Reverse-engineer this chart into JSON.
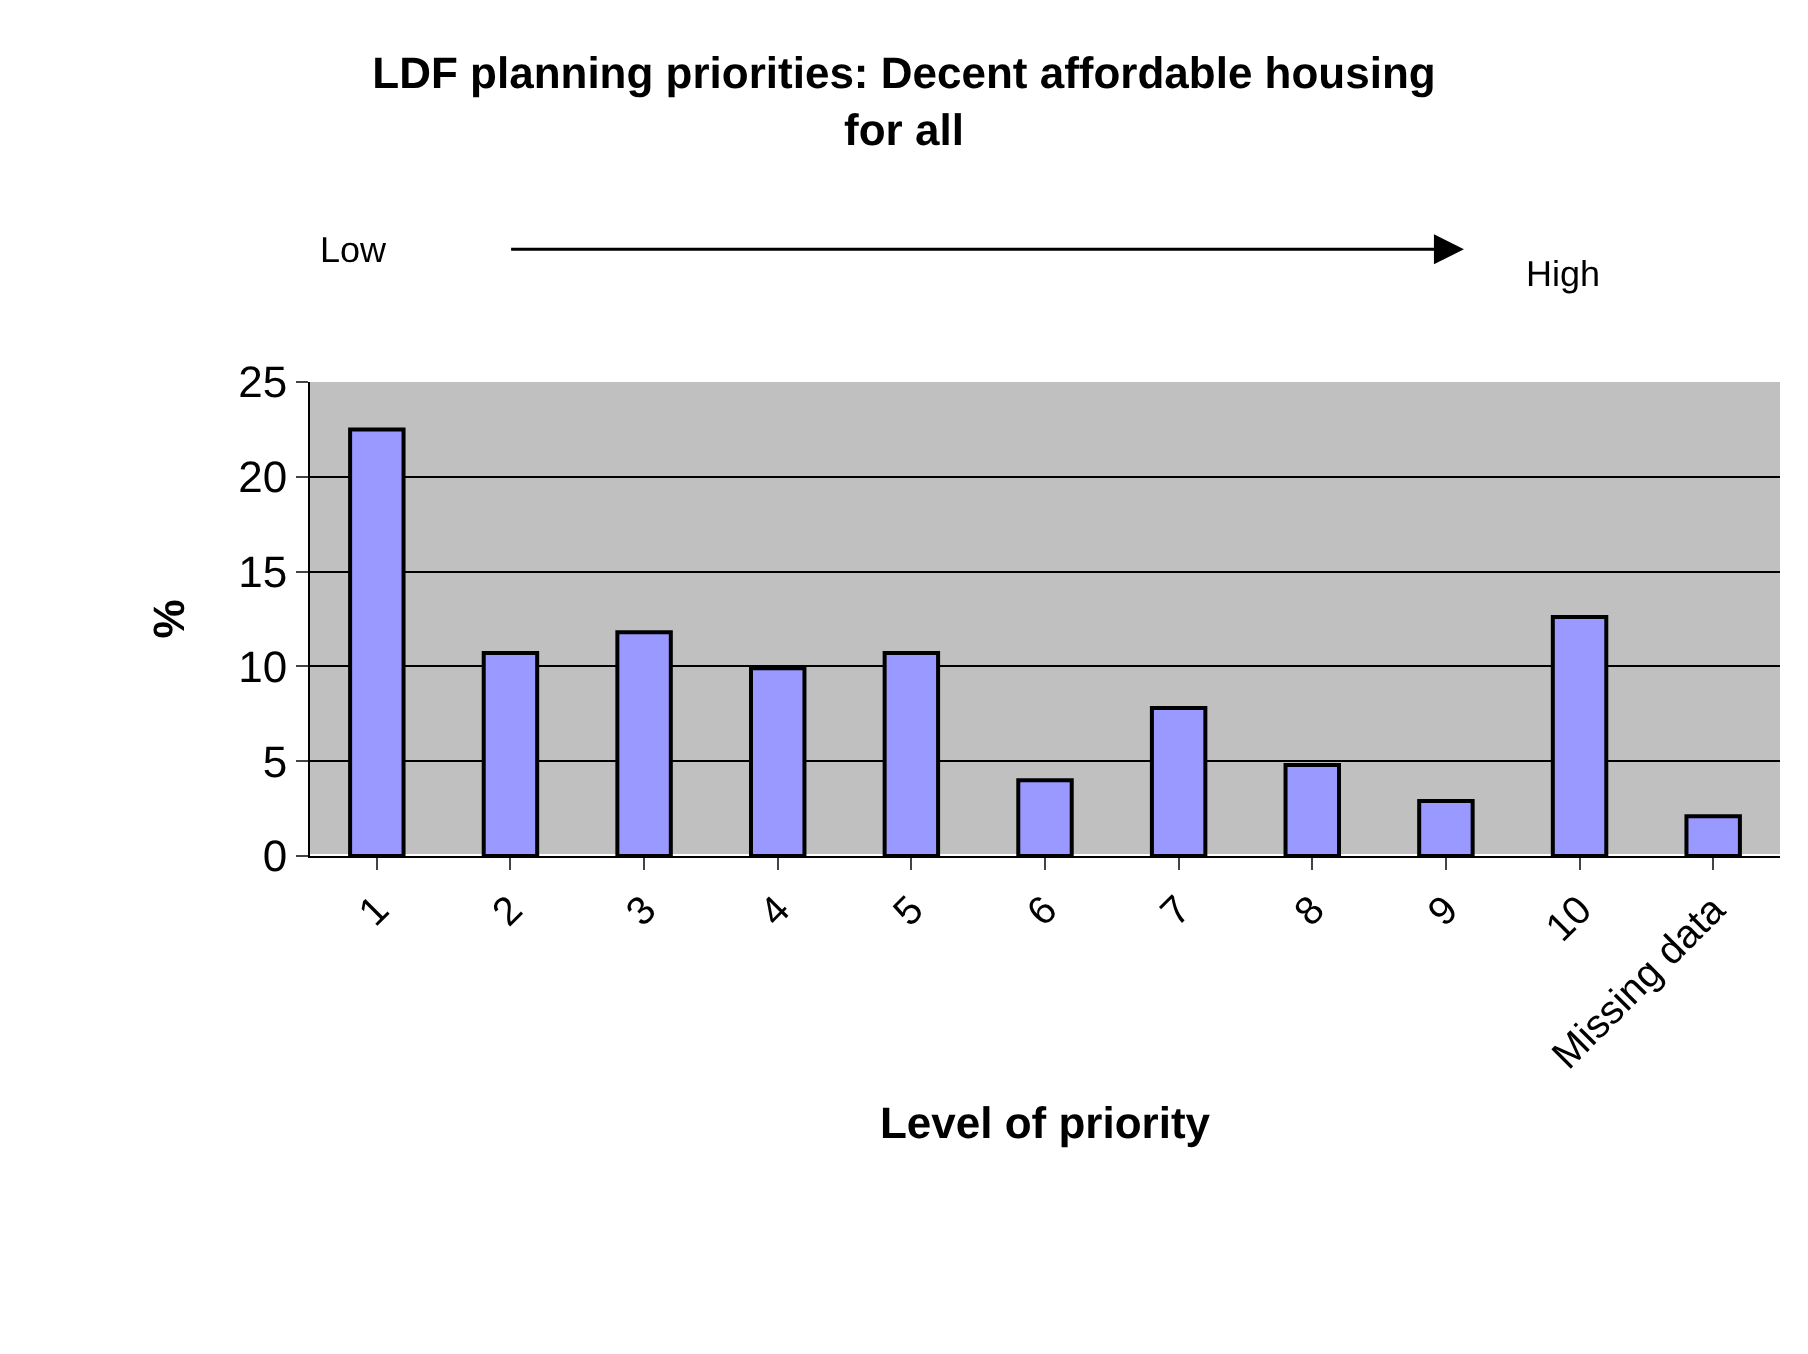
{
  "chart_data": {
    "type": "bar",
    "title": "LDF planning priorities: Decent affordable housing\nfor all",
    "xlabel": "Level of priority",
    "ylabel": "%",
    "categories": [
      "1",
      "2",
      "3",
      "4",
      "5",
      "6",
      "7",
      "8",
      "9",
      "10",
      "Missing data"
    ],
    "values": [
      22.5,
      10.7,
      11.8,
      9.9,
      10.7,
      4.0,
      7.8,
      4.8,
      2.9,
      12.6,
      2.1
    ],
    "color": "#9999ff",
    "ylim": [
      0,
      25
    ],
    "yticks": [
      0,
      5,
      10,
      15,
      20,
      25
    ],
    "grid": "y",
    "legend": false,
    "annotations": [
      "Low",
      "High"
    ]
  }
}
